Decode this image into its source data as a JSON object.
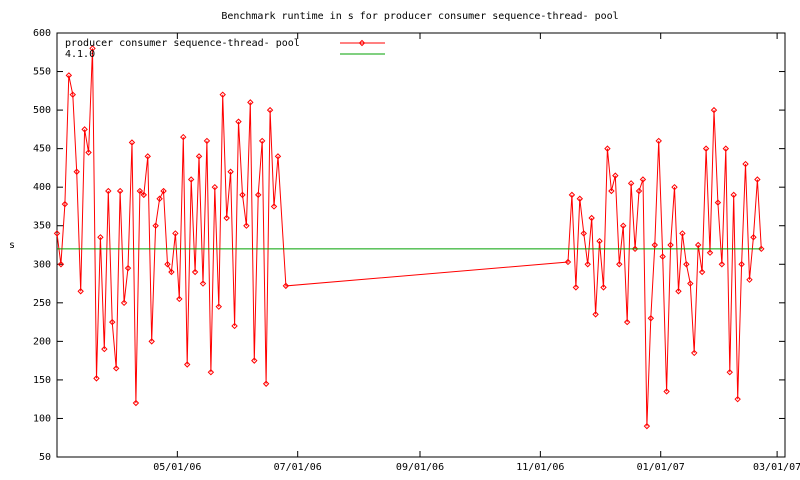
{
  "chart_data": {
    "type": "line",
    "title": "Benchmark runtime in s for producer consumer sequence-thread-  pool",
    "y_label": "s",
    "legend": "top-left",
    "xlim": [
      "03/01/06",
      "03/05/07"
    ],
    "xticks": [
      "05/01/06",
      "07/01/06",
      "09/01/06",
      "11/01/06",
      "01/01/07",
      "03/01/07"
    ],
    "ylim": [
      50,
      600
    ],
    "yticks": [
      50,
      100,
      150,
      200,
      250,
      300,
      350,
      400,
      450,
      500,
      550,
      600
    ],
    "series": [
      {
        "name": "producer consumer sequence-thread-  pool",
        "color": "#ff0000",
        "markers": true,
        "x": [
          "03/01/06",
          "03/03/06",
          "03/05/06",
          "03/07/06",
          "03/09/06",
          "03/11/06",
          "03/13/06",
          "03/15/06",
          "03/17/06",
          "03/19/06",
          "03/21/06",
          "03/23/06",
          "03/25/06",
          "03/27/06",
          "03/29/06",
          "03/31/06",
          "04/02/06",
          "04/04/06",
          "04/06/06",
          "04/08/06",
          "04/10/06",
          "04/12/06",
          "04/14/06",
          "04/16/06",
          "04/18/06",
          "04/20/06",
          "04/22/06",
          "04/24/06",
          "04/26/06",
          "04/28/06",
          "04/30/06",
          "05/02/06",
          "05/04/06",
          "05/06/06",
          "05/08/06",
          "05/10/06",
          "05/12/06",
          "05/14/06",
          "05/16/06",
          "05/18/06",
          "05/20/06",
          "05/22/06",
          "05/24/06",
          "05/26/06",
          "05/28/06",
          "05/30/06",
          "06/01/06",
          "06/03/06",
          "06/05/06",
          "06/07/06",
          "06/09/06",
          "06/11/06",
          "06/13/06",
          "06/15/06",
          "06/17/06",
          "06/19/06",
          "06/21/06",
          "06/25/06",
          "11/15/06",
          "11/17/06",
          "11/19/06",
          "11/21/06",
          "11/23/06",
          "11/25/06",
          "11/27/06",
          "11/29/06",
          "12/01/06",
          "12/03/06",
          "12/05/06",
          "12/07/06",
          "12/09/06",
          "12/11/06",
          "12/13/06",
          "12/15/06",
          "12/17/06",
          "12/19/06",
          "12/21/06",
          "12/23/06",
          "12/25/06",
          "12/27/06",
          "12/29/06",
          "12/31/06",
          "01/02/07",
          "01/04/07",
          "01/06/07",
          "01/08/07",
          "01/10/07",
          "01/12/07",
          "01/14/07",
          "01/16/07",
          "01/18/07",
          "01/20/07",
          "01/22/07",
          "01/24/07",
          "01/26/07",
          "01/28/07",
          "01/30/07",
          "02/01/07",
          "02/03/07",
          "02/05/07",
          "02/07/07",
          "02/09/07",
          "02/11/07",
          "02/13/07",
          "02/15/07",
          "02/17/07",
          "02/19/07",
          "02/21/07"
        ],
        "values": [
          340,
          300,
          378,
          545,
          520,
          420,
          265,
          475,
          445,
          580,
          152,
          335,
          190,
          395,
          225,
          165,
          395,
          250,
          295,
          458,
          120,
          395,
          390,
          440,
          200,
          350,
          385,
          395,
          300,
          290,
          340,
          255,
          465,
          170,
          410,
          290,
          440,
          275,
          460,
          160,
          400,
          245,
          520,
          360,
          420,
          220,
          485,
          390,
          350,
          510,
          175,
          390,
          460,
          145,
          500,
          375,
          440,
          272,
          303,
          390,
          270,
          385,
          340,
          300,
          360,
          235,
          330,
          270,
          450,
          395,
          415,
          300,
          350,
          225,
          405,
          320,
          395,
          410,
          90,
          230,
          325,
          460,
          310,
          135,
          325,
          400,
          265,
          340,
          300,
          275,
          185,
          325,
          290,
          450,
          315,
          500,
          380,
          300,
          450,
          160,
          390,
          125,
          300,
          430,
          280,
          335,
          410,
          320
        ]
      },
      {
        "name": "4.1.0",
        "color": "#00a000",
        "markers": false,
        "x": [
          "03/01/06",
          "02/21/07"
        ],
        "values": [
          320,
          320
        ]
      }
    ]
  }
}
